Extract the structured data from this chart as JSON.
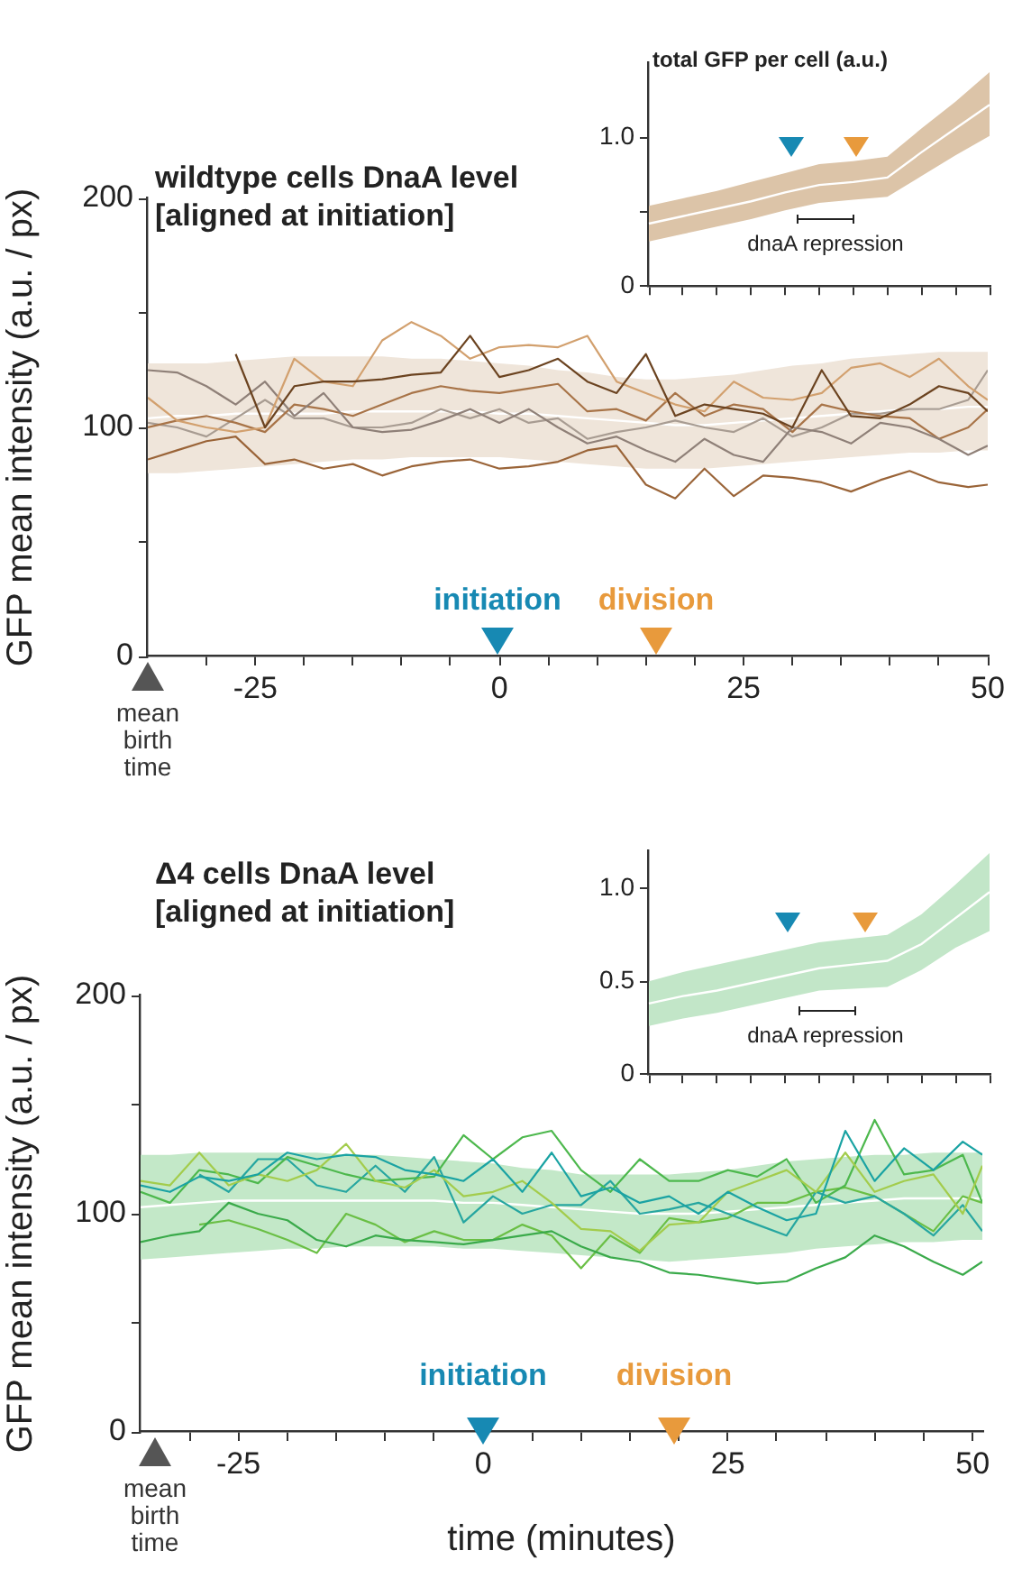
{
  "chart_data": [
    {
      "type": "line",
      "title": "wildtype cells DnaA level",
      "subtitle": "[aligned at initiation]",
      "ylabel": "GFP mean intensity (a.u. / px)",
      "x": [
        -36,
        -33,
        -30,
        -27,
        -24,
        -21,
        -18,
        -15,
        -12,
        -9,
        -6,
        -3,
        0,
        3,
        6,
        9,
        12,
        15,
        18,
        21,
        24,
        27,
        30,
        33,
        36,
        39,
        42,
        45,
        48,
        50
      ],
      "xlim": [
        -36,
        50
      ],
      "xticks": [
        -25,
        0,
        25,
        50,
        {
          "value": -30,
          "label": null
        },
        {
          "value": -20,
          "label": null
        },
        {
          "value": -15,
          "label": null
        },
        {
          "value": -10,
          "label": null
        },
        {
          "value": -5,
          "label": null
        },
        {
          "value": 5,
          "label": null
        },
        {
          "value": 10,
          "label": null
        },
        {
          "value": 15,
          "label": null
        },
        {
          "value": 20,
          "label": null
        },
        {
          "value": 30,
          "label": null
        },
        {
          "value": 35,
          "label": null
        },
        {
          "value": 40,
          "label": null
        },
        {
          "value": 45,
          "label": null
        }
      ],
      "ylim": [
        0,
        200
      ],
      "yticks": [
        0,
        {
          "value": 50,
          "label": null
        },
        100,
        {
          "value": 150,
          "label": null
        },
        200
      ],
      "series": [
        {
          "color": "#ffffff",
          "values": [
            104,
            105,
            105,
            106,
            106,
            106,
            106,
            107,
            107,
            107,
            107,
            107,
            106,
            106,
            105,
            104,
            103,
            102,
            101,
            101,
            102,
            103,
            104,
            105,
            106,
            107,
            108,
            108,
            109,
            109
          ],
          "lower": [
            80,
            80,
            81,
            82,
            83,
            84,
            85,
            86,
            86,
            87,
            87,
            87,
            87,
            86,
            85,
            84,
            83,
            82,
            82,
            82,
            83,
            84,
            85,
            86,
            87,
            88,
            89,
            89,
            90,
            90
          ],
          "upper": [
            128,
            128,
            128,
            129,
            130,
            131,
            131,
            131,
            131,
            130,
            130,
            129,
            128,
            127,
            125,
            124,
            122,
            121,
            121,
            122,
            123,
            125,
            127,
            128,
            130,
            131,
            132,
            133,
            133,
            133
          ]
        },
        {
          "color": "#9a6438",
          "values": [
            86,
            90,
            94,
            96,
            84,
            86,
            82,
            84,
            79,
            83,
            85,
            86,
            82,
            83,
            85,
            90,
            92,
            75,
            69,
            82,
            70,
            79,
            78,
            76,
            72,
            77,
            81,
            76,
            74,
            75
          ]
        },
        {
          "color": "#6b4320",
          "values": [
            null,
            null,
            null,
            132,
            100,
            118,
            120,
            120,
            121,
            123,
            124,
            140,
            122,
            125,
            130,
            120,
            115,
            132,
            105,
            110,
            108,
            106,
            100,
            125,
            105,
            104,
            110,
            118,
            115,
            107
          ]
        },
        {
          "color": "#d2a06e",
          "values": [
            113,
            103,
            100,
            98,
            100,
            130,
            120,
            118,
            138,
            146,
            140,
            130,
            135,
            136,
            135,
            140,
            120,
            115,
            110,
            107,
            120,
            113,
            112,
            115,
            126,
            128,
            122,
            130,
            118,
            112
          ]
        },
        {
          "color": "#8f8078",
          "values": [
            125,
            124,
            118,
            110,
            120,
            105,
            115,
            100,
            98,
            99,
            103,
            108,
            102,
            108,
            100,
            93,
            96,
            90,
            85,
            95,
            88,
            85,
            100,
            98,
            93,
            102,
            100,
            95,
            88,
            92
          ]
        },
        {
          "color": "#a87448",
          "values": [
            100,
            103,
            105,
            102,
            98,
            110,
            108,
            105,
            110,
            115,
            118,
            116,
            115,
            117,
            119,
            107,
            108,
            103,
            115,
            105,
            110,
            108,
            98,
            110,
            107,
            105,
            104,
            95,
            100,
            108
          ]
        },
        {
          "color": "#a89c92",
          "values": [
            102,
            100,
            96,
            104,
            112,
            104,
            104,
            100,
            100,
            102,
            108,
            104,
            108,
            102,
            104,
            95,
            98,
            100,
            103,
            100,
            98,
            104,
            96,
            100,
            106,
            106,
            108,
            108,
            112,
            125
          ]
        }
      ],
      "annotations": [
        "mean birth time",
        "initiation",
        "division"
      ]
    },
    {
      "type": "line",
      "title": "total GFP per cell (a.u.)",
      "categories": [
        null,
        null,
        null,
        null,
        null,
        null,
        null,
        null,
        null,
        null,
        null
      ],
      "tick_labels": "y",
      "ylim": [
        0,
        1.5
      ],
      "yticks": [
        0,
        {
          "value": 0.5,
          "label": null
        },
        {
          "value": 1,
          "label": "1.0"
        }
      ],
      "series": [
        {
          "color": "#ffffff",
          "values": [
            0.42,
            0.47,
            0.52,
            0.57,
            0.63,
            0.68,
            0.7,
            0.73,
            0.9,
            1.06,
            1.22
          ],
          "lower": [
            0.3,
            0.35,
            0.4,
            0.45,
            0.51,
            0.56,
            0.58,
            0.6,
            0.74,
            0.88,
            1.01
          ],
          "upper": [
            0.54,
            0.59,
            0.64,
            0.7,
            0.76,
            0.82,
            0.84,
            0.87,
            1.06,
            1.24,
            1.44
          ]
        }
      ],
      "annotations": [
        "dnaA repression"
      ]
    },
    {
      "type": "line",
      "title": "Δ4 cells DnaA level",
      "subtitle": "[aligned at initiation]",
      "ylabel": "GFP mean intensity (a.u. / px)",
      "xlabel": "time (minutes)",
      "x": [
        -35,
        -32,
        -29,
        -26,
        -23,
        -20,
        -17,
        -14,
        -11,
        -8,
        -5,
        -2,
        1,
        4,
        7,
        10,
        13,
        16,
        19,
        22,
        25,
        28,
        31,
        34,
        37,
        40,
        43,
        46,
        49,
        51
      ],
      "xlim": [
        -35,
        51
      ],
      "xticks": [
        -25,
        0,
        25,
        50,
        {
          "value": -30,
          "label": null
        },
        {
          "value": -20,
          "label": null
        },
        {
          "value": -15,
          "label": null
        },
        {
          "value": -10,
          "label": null
        },
        {
          "value": -5,
          "label": null
        },
        {
          "value": 5,
          "label": null
        },
        {
          "value": 10,
          "label": null
        },
        {
          "value": 15,
          "label": null
        },
        {
          "value": 20,
          "label": null
        },
        {
          "value": 30,
          "label": null
        },
        {
          "value": 35,
          "label": null
        },
        {
          "value": 40,
          "label": null
        },
        {
          "value": 45,
          "label": null
        }
      ],
      "ylim": [
        0,
        200
      ],
      "yticks": [
        0,
        {
          "value": 50,
          "label": null
        },
        100,
        {
          "value": 150,
          "label": null
        },
        200
      ],
      "series": [
        {
          "color": "#ffffff",
          "values": [
            103,
            104,
            105,
            106,
            106,
            106,
            106,
            106,
            106,
            106,
            106,
            105,
            105,
            104,
            103,
            102,
            101,
            100,
            100,
            100,
            101,
            102,
            103,
            104,
            105,
            106,
            107,
            107,
            107,
            107
          ],
          "lower": [
            79,
            80,
            81,
            82,
            83,
            84,
            84,
            85,
            85,
            85,
            85,
            84,
            84,
            83,
            82,
            81,
            80,
            79,
            78,
            79,
            80,
            81,
            82,
            84,
            85,
            86,
            87,
            87,
            88,
            88
          ],
          "upper": [
            127,
            127,
            128,
            128,
            128,
            128,
            128,
            127,
            127,
            126,
            125,
            124,
            123,
            121,
            120,
            118,
            118,
            118,
            118,
            119,
            120,
            122,
            124,
            125,
            126,
            127,
            127,
            128,
            128,
            128
          ]
        },
        {
          "color": "#3aaa4a",
          "values": [
            87,
            90,
            92,
            105,
            100,
            97,
            88,
            85,
            90,
            88,
            87,
            86,
            88,
            90,
            92,
            85,
            80,
            78,
            73,
            72,
            70,
            68,
            69,
            75,
            80,
            90,
            85,
            78,
            72,
            78
          ]
        },
        {
          "color": "#1aa3a3",
          "values": [
            113,
            110,
            117,
            115,
            118,
            128,
            125,
            127,
            126,
            120,
            118,
            115,
            125,
            110,
            128,
            108,
            112,
            105,
            108,
            100,
            110,
            103,
            97,
            100,
            138,
            115,
            130,
            120,
            133,
            127
          ]
        },
        {
          "color": "#a3cc4c",
          "values": [
            115,
            113,
            128,
            113,
            118,
            115,
            120,
            132,
            115,
            112,
            120,
            108,
            110,
            115,
            105,
            93,
            92,
            83,
            95,
            96,
            110,
            115,
            120,
            110,
            128,
            110,
            115,
            118,
            100,
            122
          ]
        },
        {
          "color": "#4db84d",
          "values": [
            110,
            105,
            120,
            118,
            114,
            126,
            122,
            118,
            115,
            116,
            117,
            136,
            125,
            135,
            138,
            120,
            110,
            125,
            115,
            115,
            120,
            117,
            125,
            105,
            113,
            143,
            118,
            120,
            127,
            105
          ]
        },
        {
          "color": "#26a6a0",
          "values": [
            null,
            null,
            118,
            110,
            125,
            125,
            113,
            110,
            122,
            110,
            126,
            96,
            108,
            100,
            104,
            104,
            115,
            100,
            102,
            105,
            100,
            95,
            90,
            110,
            105,
            108,
            100,
            90,
            104,
            92
          ]
        },
        {
          "color": "#6abf45",
          "values": [
            null,
            null,
            95,
            97,
            93,
            88,
            82,
            100,
            95,
            87,
            92,
            88,
            88,
            95,
            90,
            75,
            90,
            82,
            98,
            96,
            98,
            105,
            105,
            110,
            112,
            108,
            100,
            92,
            108,
            105
          ]
        }
      ],
      "annotations": [
        "mean birth time",
        "initiation",
        "division"
      ]
    },
    {
      "type": "line",
      "categories": [
        null,
        null,
        null,
        null,
        null,
        null,
        null,
        null,
        null,
        null,
        null
      ],
      "tick_labels": "y",
      "ylim": [
        0,
        1.2
      ],
      "yticks": [
        0,
        0.5,
        {
          "value": 1,
          "label": "1.0"
        }
      ],
      "series": [
        {
          "color": "#ffffff",
          "values": [
            0.38,
            0.42,
            0.45,
            0.49,
            0.53,
            0.57,
            0.59,
            0.61,
            0.7,
            0.84,
            0.98
          ],
          "lower": [
            0.26,
            0.3,
            0.33,
            0.37,
            0.41,
            0.45,
            0.46,
            0.47,
            0.56,
            0.68,
            0.77
          ],
          "upper": [
            0.5,
            0.55,
            0.59,
            0.63,
            0.67,
            0.71,
            0.73,
            0.75,
            0.86,
            1.02,
            1.19
          ]
        }
      ],
      "annotations": [
        "dnaA repression"
      ]
    }
  ]
}
